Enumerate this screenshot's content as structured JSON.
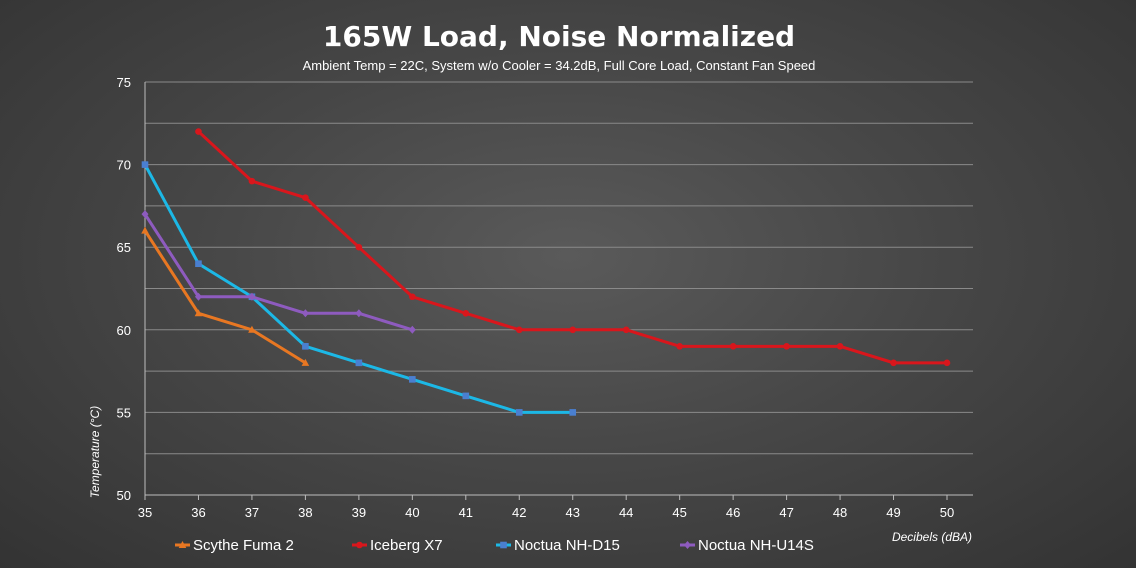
{
  "chart_data": {
    "type": "line",
    "title": "165W Load, Noise Normalized",
    "subtitle": "Ambient Temp = 22C, System w/o Cooler = 34.2dB, Full Core Load, Constant Fan Speed",
    "xlabel": "Decibels (dBA)",
    "ylabel": "Temperature (°C)",
    "xlim": [
      35,
      50
    ],
    "ylim": [
      50,
      75
    ],
    "x_ticks": [
      "35",
      "36",
      "37",
      "38",
      "39",
      "40",
      "41",
      "42",
      "43",
      "44",
      "45",
      "46",
      "47",
      "48",
      "49",
      "50"
    ],
    "y_ticks": [
      "50",
      "55",
      "60",
      "65",
      "70",
      "75"
    ],
    "y_grid": [
      52.5,
      55,
      57.5,
      60,
      62.5,
      65,
      67.5,
      70,
      72.5,
      75
    ],
    "grid": true,
    "legend_position": "bottom",
    "series": [
      {
        "name": "Scythe Fuma 2",
        "color": "#e87722",
        "marker": "triangle",
        "points": [
          [
            35,
            66
          ],
          [
            36,
            61
          ],
          [
            37,
            60
          ],
          [
            38,
            58
          ]
        ]
      },
      {
        "name": "Iceberg X7",
        "color": "#d9161c",
        "marker": "circle",
        "points": [
          [
            36,
            72
          ],
          [
            37,
            69
          ],
          [
            38,
            68
          ],
          [
            39,
            65
          ],
          [
            40,
            62
          ],
          [
            41,
            61
          ],
          [
            42,
            60
          ],
          [
            43,
            60
          ],
          [
            44,
            60
          ],
          [
            45,
            59
          ],
          [
            46,
            59
          ],
          [
            47,
            59
          ],
          [
            48,
            59
          ],
          [
            49,
            58
          ],
          [
            50,
            58
          ]
        ]
      },
      {
        "name": "Noctua NH-D15",
        "color": "#1cb8e6",
        "marker_color": "#4a7fd0",
        "marker": "square",
        "points": [
          [
            35,
            70
          ],
          [
            36,
            64
          ],
          [
            37,
            62
          ],
          [
            38,
            59
          ],
          [
            39,
            58
          ],
          [
            40,
            57
          ],
          [
            41,
            56
          ],
          [
            42,
            55
          ],
          [
            43,
            55
          ]
        ]
      },
      {
        "name": "Noctua NH-U14S",
        "color": "#8e5bbf",
        "marker": "diamond",
        "points": [
          [
            35,
            67
          ],
          [
            36,
            62
          ],
          [
            37,
            62
          ],
          [
            38,
            61
          ],
          [
            39,
            61
          ],
          [
            40,
            60
          ]
        ]
      }
    ]
  }
}
